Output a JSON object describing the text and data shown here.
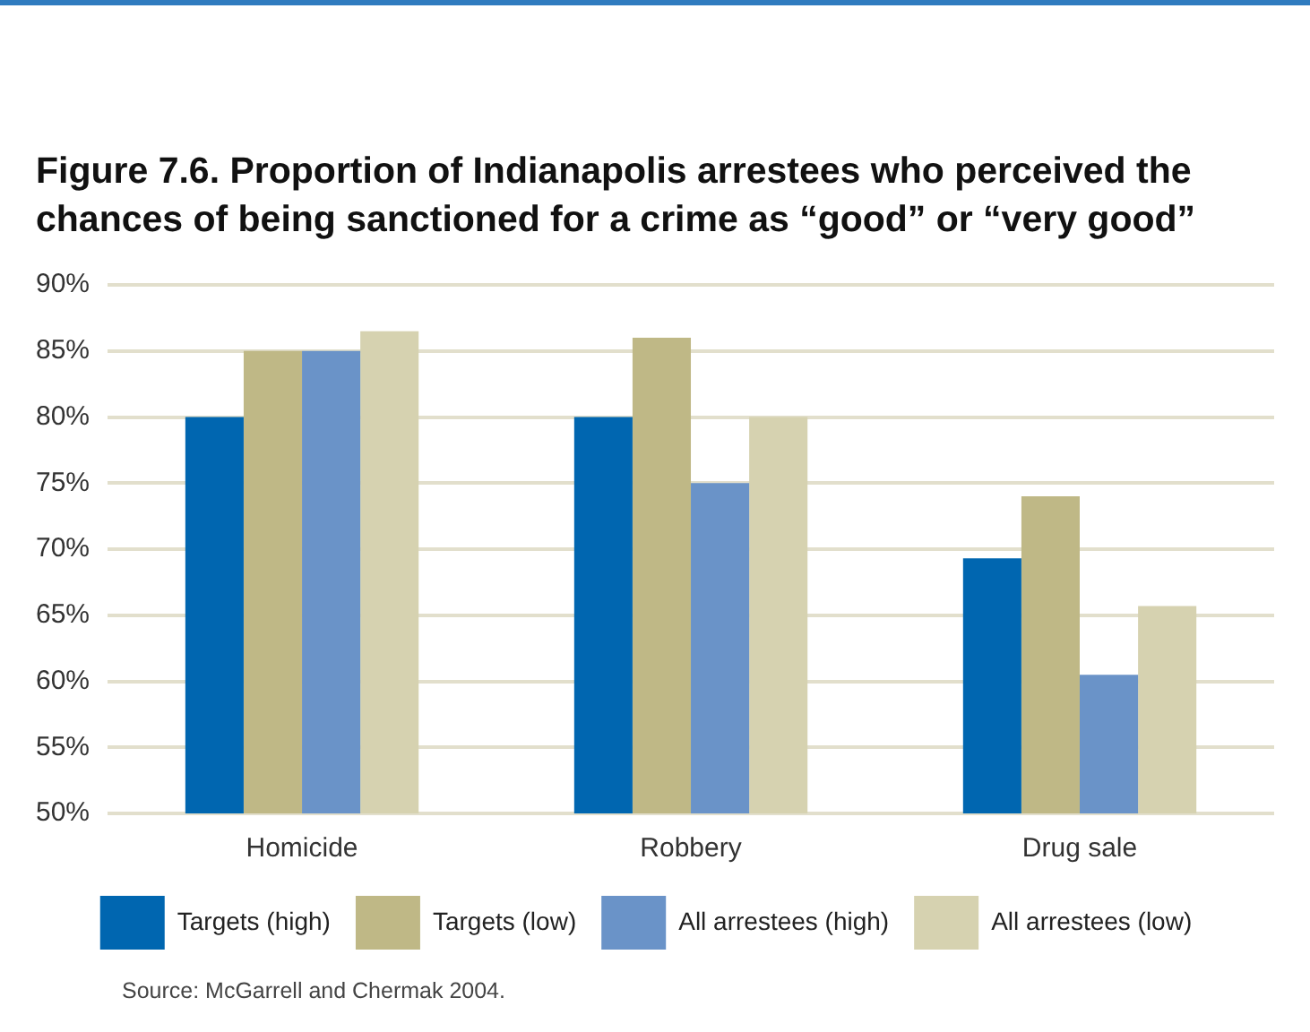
{
  "chart_data": {
    "type": "bar",
    "title": "Figure 7.6. Proportion of Indianapolis arrestees who perceived the chances of being sanctioned for a crime as “good” or “very good”",
    "categories": [
      "Homicide",
      "Robbery",
      "Drug sale"
    ],
    "series": [
      {
        "name": "Targets (high)",
        "color": "#0066b0",
        "values": [
          80,
          80,
          69.3
        ]
      },
      {
        "name": "Targets (low)",
        "color": "#bfb886",
        "values": [
          85,
          86,
          74
        ]
      },
      {
        "name": "All arrestees (high)",
        "color": "#6a93c8",
        "values": [
          85,
          75,
          60.5
        ]
      },
      {
        "name": "All arrestees (low)",
        "color": "#d6d2b0",
        "values": [
          86.5,
          80,
          65.7
        ]
      }
    ],
    "ylim": [
      50,
      90
    ],
    "yticks": [
      {
        "value": 50,
        "label": "50%"
      },
      {
        "value": 55,
        "label": "55%"
      },
      {
        "value": 60,
        "label": "60%"
      },
      {
        "value": 65,
        "label": "65%"
      },
      {
        "value": 70,
        "label": "70%"
      },
      {
        "value": 75,
        "label": "75%"
      },
      {
        "value": 80,
        "label": "80%"
      },
      {
        "value": 85,
        "label": "85%"
      },
      {
        "value": 90,
        "label": "90%"
      }
    ],
    "grid": "y",
    "legend": "bottom",
    "annotations": [
      "Source: McGarrell and Chermak 2004."
    ]
  }
}
